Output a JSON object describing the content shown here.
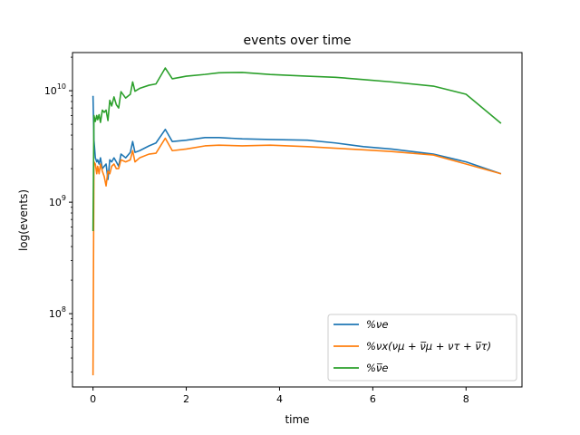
{
  "chart_data": {
    "type": "line",
    "title": "events over time",
    "xlabel": "time",
    "ylabel": "log(events)",
    "xlim": [
      -0.44,
      9.2
    ],
    "ylim": [
      22000000,
      22000000000
    ],
    "yscale": "log",
    "grid": false,
    "legend_position": "lower-right",
    "x_ticks": [
      {
        "value": 0,
        "label": "0"
      },
      {
        "value": 2,
        "label": "2"
      },
      {
        "value": 4,
        "label": "4"
      },
      {
        "value": 6,
        "label": "6"
      },
      {
        "value": 8,
        "label": "8"
      }
    ],
    "y_ticks": [
      {
        "value": 100000000,
        "base": "10",
        "exp": "8"
      },
      {
        "value": 1000000000,
        "base": "10",
        "exp": "9"
      },
      {
        "value": 10000000000,
        "base": "10",
        "exp": "10"
      }
    ],
    "series": [
      {
        "name": "%νe",
        "color": "#1f77b4",
        "x": [
          0.0,
          0.02,
          0.05,
          0.08,
          0.1,
          0.13,
          0.16,
          0.2,
          0.24,
          0.28,
          0.32,
          0.36,
          0.4,
          0.45,
          0.5,
          0.55,
          0.6,
          0.7,
          0.8,
          0.85,
          0.9,
          1.0,
          1.2,
          1.35,
          1.55,
          1.7,
          2.0,
          2.4,
          2.7,
          3.2,
          3.8,
          4.6,
          5.2,
          5.8,
          6.4,
          7.3,
          8.0,
          8.75
        ],
        "y": [
          9000000000,
          3600000000,
          2500000000,
          2300000000,
          2400000000,
          2200000000,
          2500000000,
          2000000000,
          2100000000,
          2200000000,
          1600000000,
          2400000000,
          2300000000,
          2500000000,
          2300000000,
          2100000000,
          2700000000,
          2500000000,
          2800000000,
          3500000000,
          2800000000,
          2900000000,
          3200000000,
          3400000000,
          4500000000,
          3500000000,
          3600000000,
          3800000000,
          3800000000,
          3700000000,
          3650000000,
          3600000000,
          3400000000,
          3150000000,
          3000000000,
          2700000000,
          2300000000,
          1800000000
        ]
      },
      {
        "name": "%νx(νμ + ν̅μ + ντ + ν̅τ)",
        "color": "#ff7f0e",
        "x": [
          0.0,
          0.02,
          0.05,
          0.08,
          0.1,
          0.13,
          0.16,
          0.2,
          0.24,
          0.28,
          0.32,
          0.36,
          0.4,
          0.45,
          0.5,
          0.55,
          0.6,
          0.7,
          0.8,
          0.85,
          0.9,
          1.0,
          1.2,
          1.35,
          1.55,
          1.7,
          2.0,
          2.4,
          2.7,
          3.2,
          3.8,
          4.6,
          5.2,
          5.8,
          6.4,
          7.3,
          8.0,
          8.75
        ],
        "y": [
          28000000,
          2300000000,
          2200000000,
          1800000000,
          2100000000,
          1800000000,
          2200000000,
          1900000000,
          1700000000,
          1400000000,
          1900000000,
          1800000000,
          2100000000,
          2200000000,
          2000000000,
          2000000000,
          2400000000,
          2300000000,
          2400000000,
          2900000000,
          2300000000,
          2500000000,
          2700000000,
          2750000000,
          3750000000,
          2900000000,
          3000000000,
          3200000000,
          3250000000,
          3200000000,
          3250000000,
          3150000000,
          3050000000,
          2950000000,
          2850000000,
          2650000000,
          2200000000,
          1800000000
        ]
      },
      {
        "name": "%ν̅e",
        "color": "#2ca02c",
        "x": [
          0.0,
          0.02,
          0.05,
          0.08,
          0.1,
          0.13,
          0.16,
          0.2,
          0.24,
          0.28,
          0.32,
          0.36,
          0.4,
          0.45,
          0.5,
          0.55,
          0.6,
          0.7,
          0.8,
          0.85,
          0.9,
          1.0,
          1.2,
          1.35,
          1.55,
          1.7,
          2.0,
          2.4,
          2.7,
          3.2,
          3.8,
          4.6,
          5.2,
          5.8,
          6.4,
          7.3,
          8.0,
          8.75
        ],
        "y": [
          550000000,
          6000000000,
          5300000000,
          6000000000,
          5500000000,
          6100000000,
          5200000000,
          6700000000,
          6400000000,
          6700000000,
          5400000000,
          8200000000,
          7300000000,
          8800000000,
          7500000000,
          7000000000,
          9800000000,
          8600000000,
          9300000000,
          12000000000,
          9900000000,
          10500000000,
          11200000000,
          11500000000,
          16000000000,
          12800000000,
          13500000000,
          14000000000,
          14500000000,
          14600000000,
          14000000000,
          13500000000,
          13200000000,
          12600000000,
          12000000000,
          11000000000,
          9300000000,
          5100000000
        ]
      }
    ]
  }
}
